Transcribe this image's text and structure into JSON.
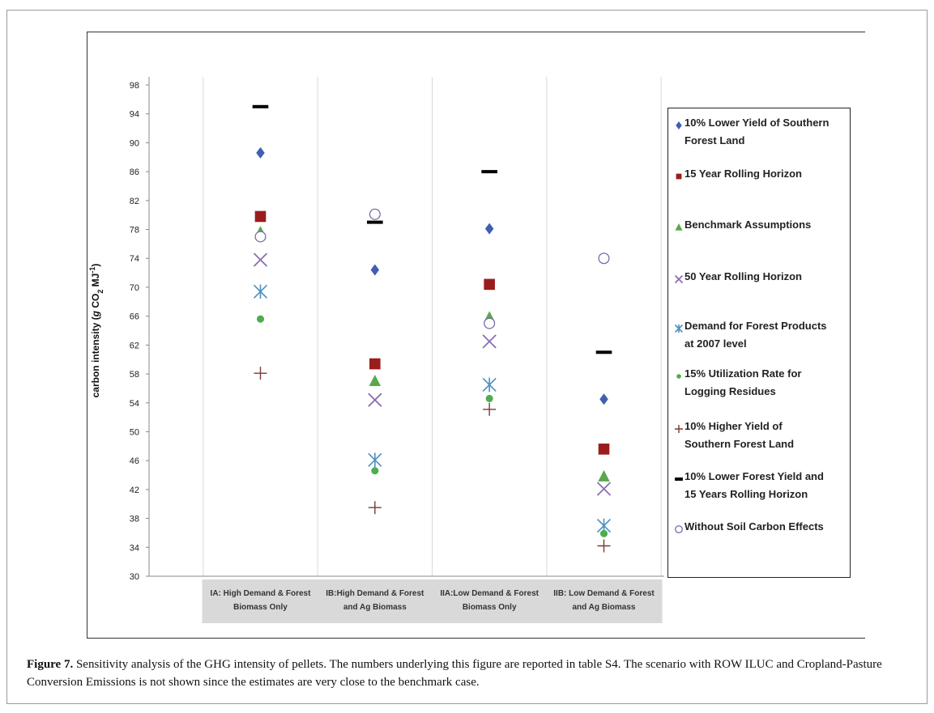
{
  "chart_data": {
    "type": "scatter",
    "ylabel": "carbon intensity (g CO2 MJ-1)",
    "ylabel_parts": {
      "pre": "carbon intensity (",
      "g": "g",
      "co": " CO",
      "sub": "2",
      "mj": " MJ",
      "sup": "-1",
      "post": ")"
    },
    "ylim": [
      30,
      98
    ],
    "yticks": [
      30,
      34,
      38,
      42,
      46,
      50,
      54,
      58,
      62,
      66,
      70,
      74,
      78,
      82,
      86,
      90,
      94,
      98
    ],
    "grid": "vertical-only",
    "legend_position": "right",
    "categories": [
      [
        "IA: High Demand & Forest",
        "Biomass Only"
      ],
      [
        "IB:High Demand & Forest",
        "and Ag Biomass"
      ],
      [
        "IIA:Low Demand & Forest",
        "Biomass Only"
      ],
      [
        "IIB: Low  Demand & Forest",
        "and Ag Biomass"
      ]
    ],
    "series": [
      {
        "name": [
          "10% Lower Yield of Southern",
          "Forest Land"
        ],
        "marker": "diamond",
        "color": "#3f5fb0",
        "values": [
          88.6,
          72.4,
          78.1,
          54.5
        ]
      },
      {
        "name": [
          "15 Year Rolling Horizon"
        ],
        "marker": "square",
        "color": "#9b1c1c",
        "values": [
          79.8,
          59.4,
          70.4,
          47.6
        ]
      },
      {
        "name": [
          "Benchmark Assumptions"
        ],
        "marker": "triangle",
        "color": "#5aa84b",
        "values": [
          77.6,
          57.0,
          65.8,
          43.8
        ]
      },
      {
        "name": [
          "50 Year Rolling Horizon"
        ],
        "marker": "x",
        "color": "#8a6fb0",
        "values": [
          73.8,
          54.4,
          62.5,
          42.1
        ]
      },
      {
        "name": [
          "Demand for Forest Products",
          "at 2007 level"
        ],
        "marker": "star",
        "color": "#4a8fc0",
        "values": [
          69.4,
          46.1,
          56.5,
          37.0
        ]
      },
      {
        "name": [
          "15% Utilization Rate for",
          "Logging Residues"
        ],
        "marker": "circle",
        "color": "#4cad4f",
        "values": [
          65.6,
          44.6,
          54.6,
          35.9
        ]
      },
      {
        "name": [
          "10% Higher Yield of",
          "Southern Forest Land"
        ],
        "marker": "plus",
        "color": "#7a3a3a",
        "values": [
          58.1,
          39.5,
          53.1,
          34.2
        ]
      },
      {
        "name": [
          "10% Lower Forest Yield and",
          "15 Years Rolling Horizon"
        ],
        "marker": "dash",
        "color": "#000000",
        "values": [
          95.0,
          79.0,
          86.0,
          61.0
        ]
      },
      {
        "name": [
          "Without Soil Carbon Effects"
        ],
        "marker": "open-circle",
        "color": "#7a6aa8",
        "values": [
          77.0,
          80.1,
          65.0,
          74.0
        ]
      }
    ]
  },
  "caption": {
    "label": "Figure 7.",
    "text": " Sensitivity analysis of the GHG intensity of pellets. The numbers underlying this figure are reported in table S4. The scenario with ROW ILUC and Cropland-Pasture Conversion Emissions is not shown since the estimates are very close to the benchmark case."
  }
}
